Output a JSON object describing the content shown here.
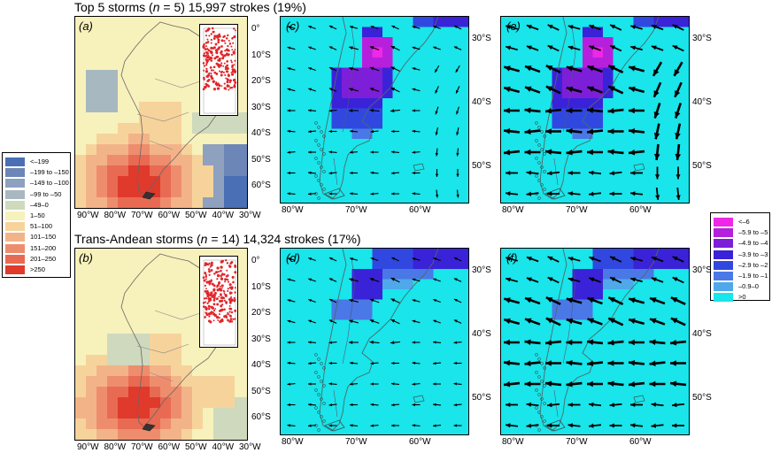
{
  "rows": [
    {
      "title_prefix": "Top 5 storms (",
      "title_n": "n",
      "title_suffix": " = 5) 15,997 strokes (19%)",
      "panels": [
        {
          "label": "(a)",
          "type": "density",
          "scenario": "top5"
        },
        {
          "label": "(c)",
          "type": "anomaly",
          "scenario": "top5",
          "wind": "weak"
        },
        {
          "label": "(e)",
          "type": "anomaly",
          "scenario": "top5",
          "wind": "strong"
        }
      ]
    },
    {
      "title_prefix": "Trans-Andean storms (",
      "title_n": "n",
      "title_suffix": " = 14) 14,324 strokes (17%)",
      "panels": [
        {
          "label": "(b)",
          "type": "density",
          "scenario": "trans"
        },
        {
          "label": "(d)",
          "type": "anomaly",
          "scenario": "trans",
          "wind": "weak"
        },
        {
          "label": "(f)",
          "type": "anomaly",
          "scenario": "trans",
          "wind": "strong"
        }
      ]
    }
  ],
  "density_axes": {
    "x_ticks": [
      "90°W",
      "80°W",
      "70°W",
      "60°W",
      "50°W",
      "40°W",
      "30°W"
    ],
    "y_ticks": [
      "0°",
      "10°S",
      "20°S",
      "30°S",
      "40°S",
      "50°S",
      "60°S"
    ]
  },
  "anomaly_axes": {
    "x_ticks": [
      "80°W",
      "70°W",
      "60°W"
    ],
    "y_ticks": [
      "30°S",
      "40°S",
      "50°S"
    ]
  },
  "legend_density": {
    "items": [
      {
        "label": "<–199",
        "color": "#4a6fb5"
      },
      {
        "label": "–199 to –150",
        "color": "#6d86b8"
      },
      {
        "label": "–149 to –100",
        "color": "#8ea1bf"
      },
      {
        "label": "–99 to –50",
        "color": "#a8b8c0"
      },
      {
        "label": "–49–0",
        "color": "#cfd9bd"
      },
      {
        "label": "1–50",
        "color": "#f7f1bb"
      },
      {
        "label": "51–100",
        "color": "#f7d39c"
      },
      {
        "label": "101–150",
        "color": "#f3b389"
      },
      {
        "label": "151–200",
        "color": "#ee8d6d"
      },
      {
        "label": "201–250",
        "color": "#e86a52"
      },
      {
        "label": ">250",
        "color": "#df3a2c"
      }
    ]
  },
  "legend_anomaly": {
    "items": [
      {
        "label": "<–6",
        "color": "#ee28e6"
      },
      {
        "label": "–5.9 to –5",
        "color": "#b620dc"
      },
      {
        "label": "–4.9 to –4",
        "color": "#7d1ed8"
      },
      {
        "label": "–3.9 to –3",
        "color": "#3a22d8"
      },
      {
        "label": "–2.9 to –2",
        "color": "#3048e0"
      },
      {
        "label": "–1.9 to –1",
        "color": "#4a78e6"
      },
      {
        "label": "–0.9–0",
        "color": "#4fa8ea"
      },
      {
        "label": ">0",
        "color": "#19e5ea"
      }
    ]
  }
}
